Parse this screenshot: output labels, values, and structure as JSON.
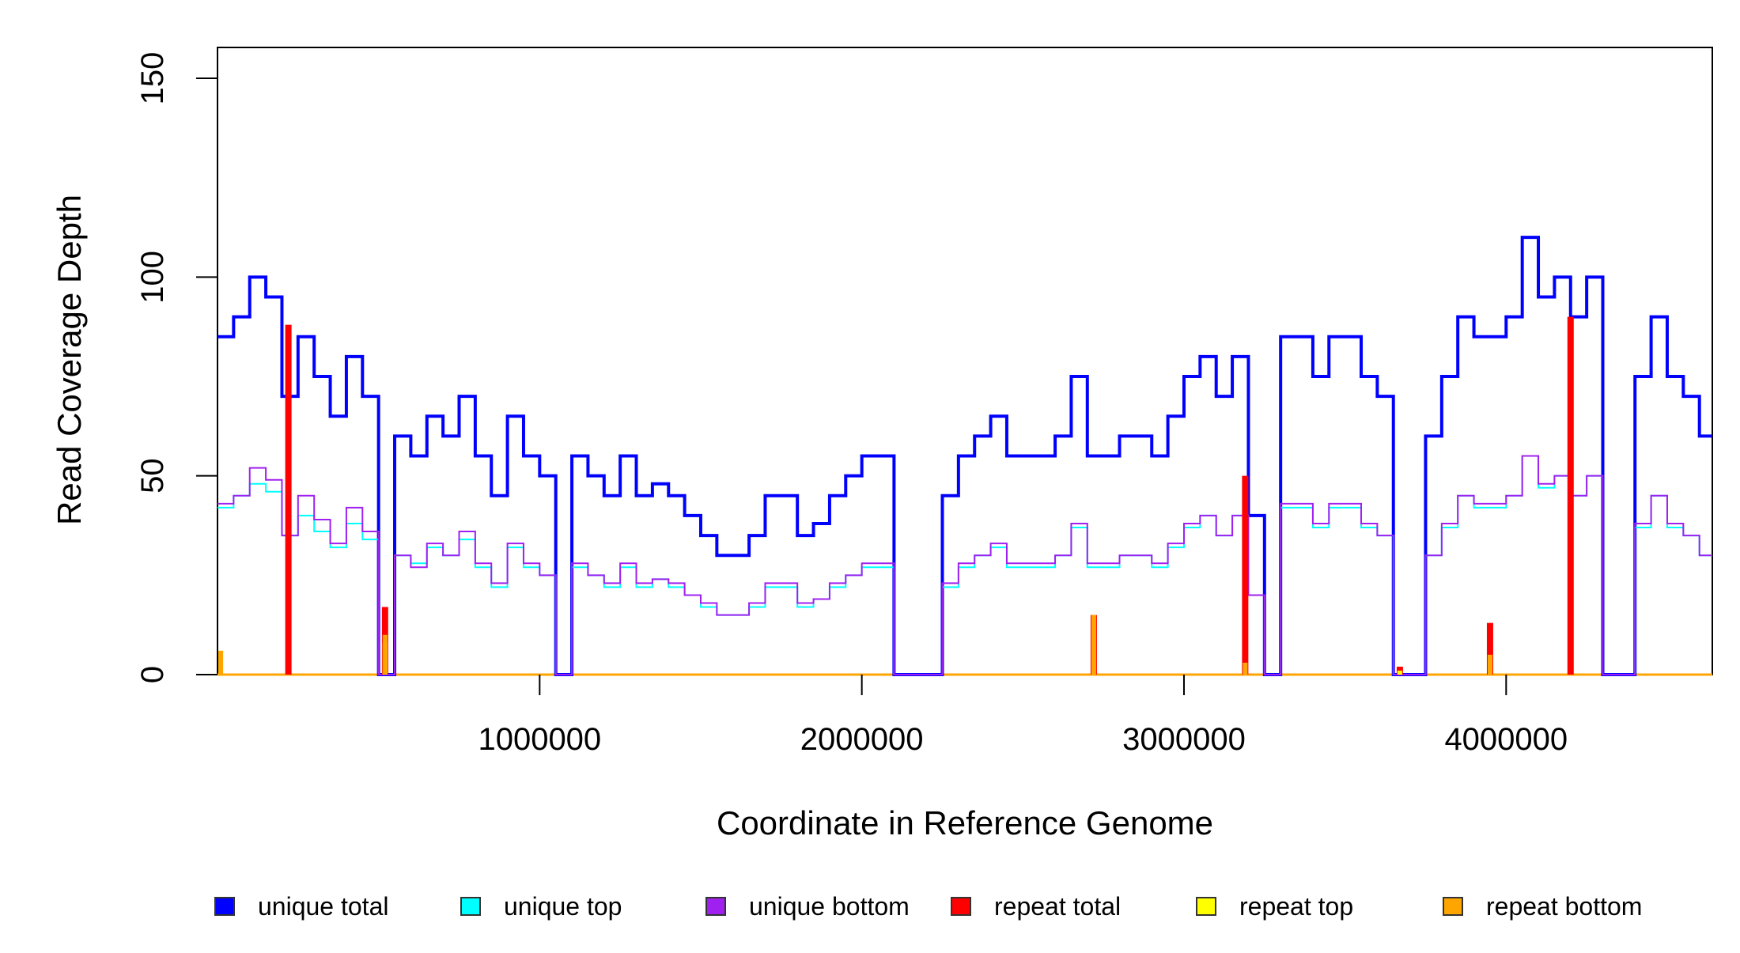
{
  "chart_data": {
    "type": "line",
    "title": "",
    "xlabel": "Coordinate in Reference Genome",
    "ylabel": "Read Coverage Depth",
    "xlim": [
      0,
      4640000
    ],
    "ylim": [
      0,
      158
    ],
    "x_ticks": [
      1000000,
      2000000,
      3000000,
      4000000
    ],
    "x_tick_labels": [
      "1000000",
      "2000000",
      "3000000",
      "4000000"
    ],
    "y_ticks": [
      0,
      50,
      100,
      150
    ],
    "y_tick_labels": [
      "0",
      "50",
      "100",
      "150"
    ],
    "grid": false,
    "legend_position": "bottom",
    "bin_size": 50000,
    "series": [
      {
        "name": "unique total",
        "color": "#0000ff",
        "values": [
          85,
          90,
          100,
          95,
          70,
          85,
          75,
          65,
          80,
          70,
          0,
          60,
          55,
          65,
          60,
          70,
          55,
          45,
          65,
          55,
          50,
          0,
          55,
          50,
          45,
          55,
          45,
          48,
          45,
          40,
          35,
          30,
          30,
          35,
          45,
          45,
          35,
          38,
          45,
          50,
          55,
          55,
          0,
          0,
          0,
          45,
          55,
          60,
          65,
          55,
          55,
          55,
          60,
          75,
          55,
          55,
          60,
          60,
          55,
          65,
          75,
          80,
          70,
          80,
          40,
          0,
          85,
          85,
          75,
          85,
          85,
          75,
          70,
          0,
          0,
          60,
          75,
          90,
          85,
          85,
          90,
          110,
          95,
          100,
          90,
          100,
          0,
          0,
          75,
          90,
          75,
          70,
          60
        ]
      },
      {
        "name": "unique top",
        "color": "#00ffff",
        "values": [
          42,
          45,
          48,
          46,
          35,
          40,
          36,
          32,
          38,
          34,
          0,
          30,
          28,
          32,
          30,
          34,
          27,
          22,
          32,
          27,
          25,
          0,
          27,
          25,
          22,
          27,
          22,
          24,
          22,
          20,
          17,
          15,
          15,
          17,
          22,
          22,
          17,
          19,
          22,
          25,
          27,
          27,
          0,
          0,
          0,
          22,
          27,
          30,
          32,
          27,
          27,
          27,
          30,
          37,
          27,
          27,
          30,
          30,
          27,
          32,
          37,
          40,
          35,
          40,
          20,
          0,
          42,
          42,
          37,
          42,
          42,
          37,
          35,
          0,
          0,
          30,
          37,
          45,
          42,
          42,
          45,
          55,
          47,
          50,
          45,
          50,
          0,
          0,
          37,
          45,
          37,
          35,
          30
        ]
      },
      {
        "name": "unique bottom",
        "color": "#a020f0",
        "values": [
          43,
          45,
          52,
          49,
          35,
          45,
          39,
          33,
          42,
          36,
          0,
          30,
          27,
          33,
          30,
          36,
          28,
          23,
          33,
          28,
          25,
          0,
          28,
          25,
          23,
          28,
          23,
          24,
          23,
          20,
          18,
          15,
          15,
          18,
          23,
          23,
          18,
          19,
          23,
          25,
          28,
          28,
          0,
          0,
          0,
          23,
          28,
          30,
          33,
          28,
          28,
          28,
          30,
          38,
          28,
          28,
          30,
          30,
          28,
          33,
          38,
          40,
          35,
          40,
          20,
          0,
          43,
          43,
          38,
          43,
          43,
          38,
          35,
          0,
          0,
          30,
          38,
          45,
          43,
          43,
          45,
          55,
          48,
          50,
          45,
          50,
          0,
          0,
          38,
          45,
          38,
          35,
          30
        ]
      },
      {
        "name": "repeat total",
        "color": "#ff0000",
        "points": [
          [
            220000,
            88
          ],
          [
            520000,
            17
          ],
          [
            2720000,
            15
          ],
          [
            3190000,
            50
          ],
          [
            3670000,
            2
          ],
          [
            3950000,
            13
          ],
          [
            4200000,
            90
          ]
        ]
      },
      {
        "name": "repeat top",
        "color": "#ffff00",
        "points": [
          [
            10000,
            6
          ],
          [
            520000,
            8
          ],
          [
            3670000,
            1
          ]
        ]
      },
      {
        "name": "repeat bottom",
        "color": "#ffa500",
        "points": [
          [
            10000,
            6
          ],
          [
            520000,
            10
          ],
          [
            2720000,
            15
          ],
          [
            3190000,
            3
          ],
          [
            3950000,
            5
          ]
        ]
      }
    ]
  }
}
